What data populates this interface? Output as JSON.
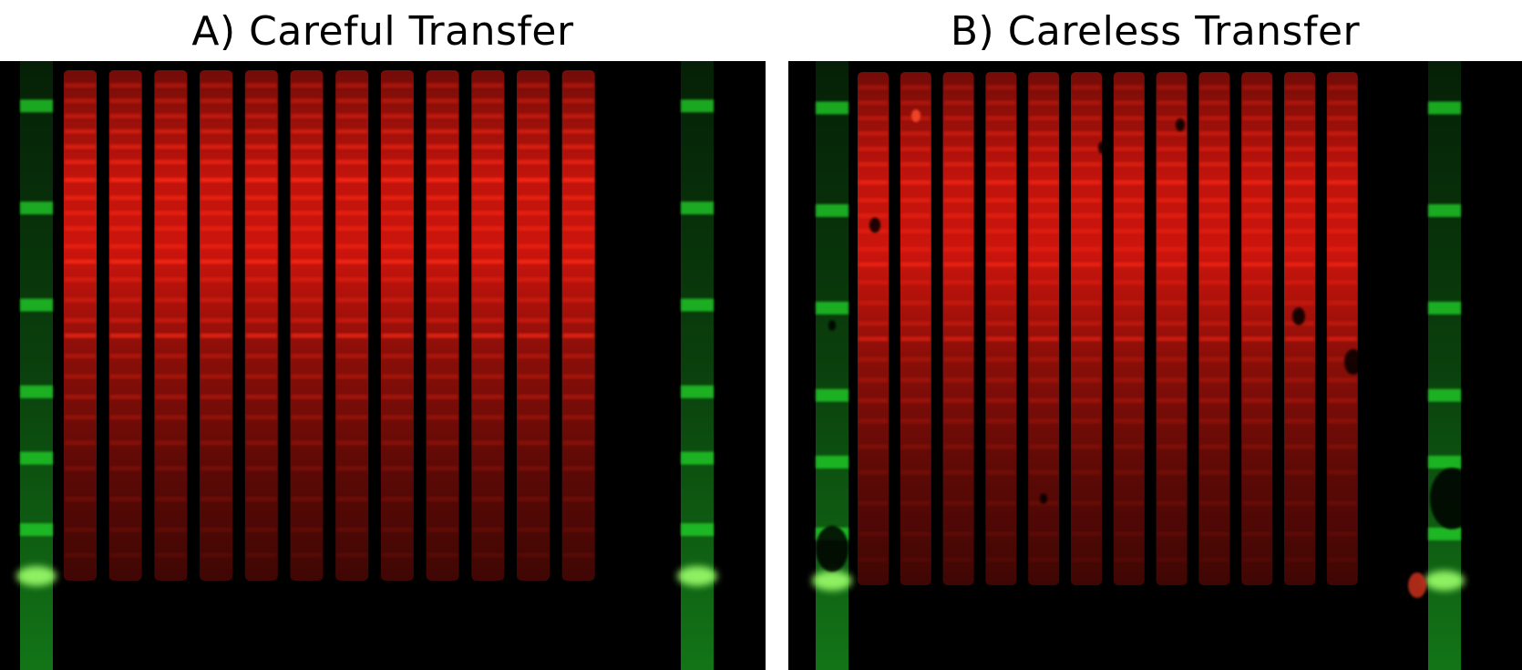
{
  "panels": [
    {
      "id": "a",
      "title": "A) Careful Transfer",
      "lane_count": 12,
      "ladder_count": 2,
      "condition": "careful"
    },
    {
      "id": "b",
      "title": "B) Careless Transfer",
      "lane_count": 12,
      "ladder_count": 2,
      "condition": "careless"
    }
  ],
  "colors": {
    "protein_channel": "#ff1a10",
    "ladder_channel": "#22d42a",
    "background": "#000000",
    "page": "#ffffff"
  }
}
